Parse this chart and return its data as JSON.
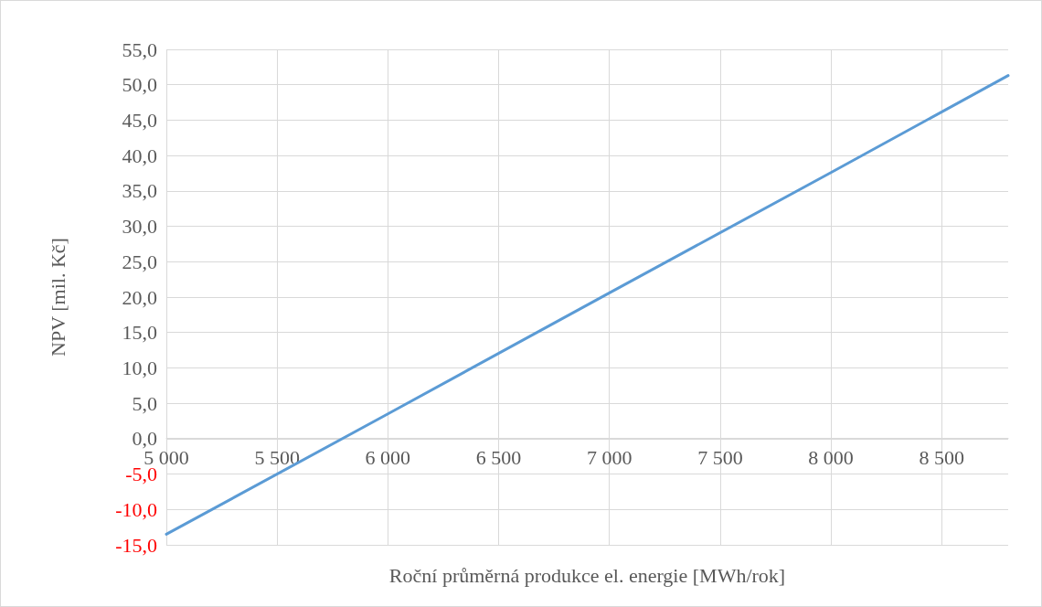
{
  "chart_data": {
    "type": "line",
    "xlabel": "Roční průměrná produkce el. energie [MWh/rok]",
    "ylabel": "NPV [mil. Kč]",
    "x": [
      5000,
      6000,
      7000,
      8000,
      8800
    ],
    "series": [
      {
        "color": "#5b9bd5",
        "values": [
          -13.5,
          3.5,
          20.6,
          37.6,
          51.3
        ]
      }
    ],
    "xlim": [
      5000,
      8800
    ],
    "xticks": [
      {
        "value": 5000,
        "label": "5 000"
      },
      {
        "value": 5500,
        "label": "5 500"
      },
      {
        "value": 6000,
        "label": "6 000"
      },
      {
        "value": 6500,
        "label": "6 500"
      },
      {
        "value": 7000,
        "label": "7 000"
      },
      {
        "value": 7500,
        "label": "7 500"
      },
      {
        "value": 8000,
        "label": "8 000"
      },
      {
        "value": 8500,
        "label": "8 500"
      }
    ],
    "ylim": [
      -15,
      55
    ],
    "yticks": [
      {
        "value": -15,
        "label": "-15,0"
      },
      {
        "value": -10,
        "label": "-10,0"
      },
      {
        "value": -5,
        "label": "-5,0"
      },
      {
        "value": 0,
        "label": "0,0"
      },
      {
        "value": 5,
        "label": "5,0"
      },
      {
        "value": 10,
        "label": "10,0"
      },
      {
        "value": 15,
        "label": "15,0"
      },
      {
        "value": 20,
        "label": "20,0"
      },
      {
        "value": 25,
        "label": "25,0"
      },
      {
        "value": 30,
        "label": "30,0"
      },
      {
        "value": 35,
        "label": "35,0"
      },
      {
        "value": 40,
        "label": "40,0"
      },
      {
        "value": 45,
        "label": "45,0"
      },
      {
        "value": 50,
        "label": "50,0"
      },
      {
        "value": 55,
        "label": "55,0"
      }
    ],
    "grid": true,
    "marker": "none",
    "line_style": "solid"
  }
}
